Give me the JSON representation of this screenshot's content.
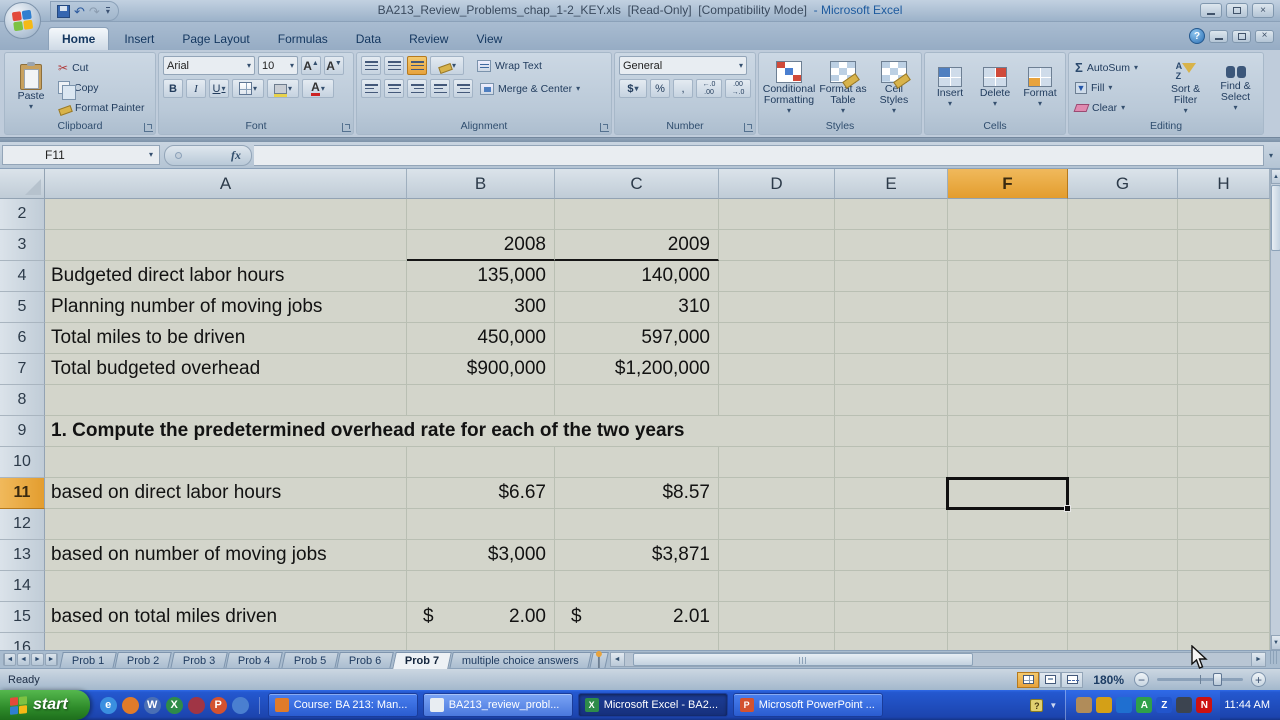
{
  "glyphs": {
    "dropdown": "▾",
    "scissors": "✂",
    "undo": "↶",
    "redo": "↷",
    "close": "×",
    "help": "?",
    "fx": "fx",
    "sigma": "Σ",
    "left": "◄",
    "right": "►",
    "up": "▲",
    "down": "▼",
    "expand": "≡"
  },
  "window": {
    "title_file": "BA213_Review_Problems_chap_1-2_KEY.xls",
    "title_readonly": "[Read-Only]",
    "title_compat": "[Compatibility Mode]",
    "title_app": "- Microsoft Excel"
  },
  "ribbon": {
    "tabs": [
      {
        "label": "Home",
        "active": true
      },
      {
        "label": "Insert"
      },
      {
        "label": "Page Layout"
      },
      {
        "label": "Formulas"
      },
      {
        "label": "Data"
      },
      {
        "label": "Review"
      },
      {
        "label": "View"
      }
    ],
    "clipboard": {
      "label": "Clipboard",
      "paste": "Paste",
      "cut": "Cut",
      "copy": "Copy",
      "format_painter": "Format Painter"
    },
    "font": {
      "label": "Font",
      "family": "Arial",
      "size": "10",
      "bold": "B",
      "italic": "I",
      "underline": "U",
      "grow": "A",
      "shrink": "A",
      "color_a": "A"
    },
    "alignment": {
      "label": "Alignment",
      "wrap_text": "Wrap Text",
      "merge_center": "Merge & Center"
    },
    "number": {
      "label": "Number",
      "format": "General",
      "dollar": "$",
      "percent": "%",
      "comma": ",",
      "inc_top": "←.0",
      "inc_bottom": ".00",
      "dec_top": ".00",
      "dec_bottom": "→.0"
    },
    "styles": {
      "label": "Styles",
      "conditional": "Conditional Formatting",
      "format_table": "Format as Table",
      "cell_styles": "Cell Styles"
    },
    "cells": {
      "label": "Cells",
      "insert": "Insert",
      "delete": "Delete",
      "format": "Format"
    },
    "editing": {
      "label": "Editing",
      "autosum": "AutoSum",
      "fill": "Fill",
      "clear": "Clear",
      "sort": "Sort & Filter",
      "find": "Find & Select"
    }
  },
  "formula_bar": {
    "name_box": "F11",
    "formula": ""
  },
  "grid": {
    "columns": [
      "A",
      "B",
      "C",
      "D",
      "E",
      "F",
      "G",
      "H"
    ],
    "selected_column": "F",
    "selected_row": "11",
    "rows": [
      {
        "n": "2",
        "cells": []
      },
      {
        "n": "3",
        "cells": [
          {
            "col": "B",
            "text": "2008",
            "align": "right",
            "underline": true
          },
          {
            "col": "C",
            "text": "2009",
            "align": "right",
            "underline": true
          }
        ]
      },
      {
        "n": "4",
        "cells": [
          {
            "col": "A",
            "text": "Budgeted direct labor hours"
          },
          {
            "col": "B",
            "text": "135,000",
            "align": "right"
          },
          {
            "col": "C",
            "text": "140,000",
            "align": "right"
          }
        ]
      },
      {
        "n": "5",
        "cells": [
          {
            "col": "A",
            "text": "Planning number of moving jobs"
          },
          {
            "col": "B",
            "text": "300",
            "align": "right"
          },
          {
            "col": "C",
            "text": "310",
            "align": "right"
          }
        ]
      },
      {
        "n": "6",
        "cells": [
          {
            "col": "A",
            "text": "Total miles to be driven"
          },
          {
            "col": "B",
            "text": "450,000",
            "align": "right"
          },
          {
            "col": "C",
            "text": "597,000",
            "align": "right"
          }
        ]
      },
      {
        "n": "7",
        "cells": [
          {
            "col": "A",
            "text": "Total budgeted overhead"
          },
          {
            "col": "B",
            "text": "$900,000",
            "align": "right"
          },
          {
            "col": "C",
            "text": "$1,200,000",
            "align": "right"
          }
        ]
      },
      {
        "n": "8",
        "cells": []
      },
      {
        "n": "9",
        "span": true,
        "cells": [
          {
            "col": "A",
            "text": "1. Compute the predetermined overhead rate for each of the two years",
            "bold": true
          }
        ]
      },
      {
        "n": "10",
        "cells": []
      },
      {
        "n": "11",
        "cells": [
          {
            "col": "A",
            "text": "based on direct labor hours"
          },
          {
            "col": "B",
            "text": "$6.67",
            "align": "right"
          },
          {
            "col": "C",
            "text": "$8.57",
            "align": "right"
          }
        ]
      },
      {
        "n": "12",
        "cells": []
      },
      {
        "n": "13",
        "cells": [
          {
            "col": "A",
            "text": "based on number of moving jobs"
          },
          {
            "col": "B",
            "text": "$3,000",
            "align": "right"
          },
          {
            "col": "C",
            "text": "$3,871",
            "align": "right"
          }
        ]
      },
      {
        "n": "14",
        "cells": []
      },
      {
        "n": "15",
        "cells": [
          {
            "col": "A",
            "text": "based on total miles driven"
          },
          {
            "col": "B",
            "sym": "$",
            "text": "2.00",
            "align": "accounting"
          },
          {
            "col": "C",
            "sym": "$",
            "text": "2.01",
            "align": "accounting"
          }
        ]
      },
      {
        "n": "16",
        "cells": []
      }
    ]
  },
  "sheet_bar": {
    "tabs": [
      {
        "label": "Prob 1"
      },
      {
        "label": "Prob 2"
      },
      {
        "label": "Prob 3"
      },
      {
        "label": "Prob 4"
      },
      {
        "label": "Prob 5"
      },
      {
        "label": "Prob 6"
      },
      {
        "label": "Prob 7",
        "active": true
      },
      {
        "label": "multiple choice answers"
      }
    ]
  },
  "status_bar": {
    "mode": "Ready",
    "zoom": "180%"
  },
  "taskbar": {
    "start": "start",
    "quick_launch": [
      {
        "name": "internet-explorer",
        "letter": "e",
        "color": "#3a8fe0"
      },
      {
        "name": "firefox",
        "letter": "",
        "color": "#e07b2a"
      },
      {
        "name": "word",
        "letter": "W",
        "color": "#4a6fb5"
      },
      {
        "name": "excel",
        "letter": "X",
        "color": "#2e8b4a"
      },
      {
        "name": "keys",
        "letter": "",
        "color": "#a03545"
      },
      {
        "name": "powerpoint",
        "letter": "P",
        "color": "#d35230"
      },
      {
        "name": "media",
        "letter": "",
        "color": "#4a7fd0"
      }
    ],
    "buttons": [
      {
        "label": "Course: BA 213: Man...",
        "icon": "firefox",
        "icon_letter": "",
        "icon_color": "#e07b2a",
        "state": "normal"
      },
      {
        "label": "BA213_review_probl...",
        "icon": "document",
        "icon_letter": "",
        "icon_color": "#e8edf2",
        "state": "lit"
      },
      {
        "label": "Microsoft Excel - BA2...",
        "icon": "excel",
        "icon_letter": "X",
        "icon_color": "#2e8b4a",
        "state": "active"
      },
      {
        "label": "Microsoft PowerPoint ...",
        "icon": "powerpoint",
        "icon_letter": "P",
        "icon_color": "#d35230",
        "state": "normal"
      }
    ],
    "tray": [
      {
        "name": "messenger",
        "letter": "",
        "color": "#b08c5a"
      },
      {
        "name": "shield",
        "letter": "",
        "color": "#d4a017"
      },
      {
        "name": "tools",
        "letter": "",
        "color": "#1f6fd0"
      },
      {
        "name": "antivirus",
        "letter": "A",
        "color": "#2fa04a"
      },
      {
        "name": "z-app",
        "letter": "Z",
        "color": "#2255cc"
      },
      {
        "name": "sphere",
        "letter": "",
        "color": "#3c4450"
      },
      {
        "name": "n-app",
        "letter": "N",
        "color": "#cc1111"
      }
    ],
    "clock": "11:44 AM"
  }
}
